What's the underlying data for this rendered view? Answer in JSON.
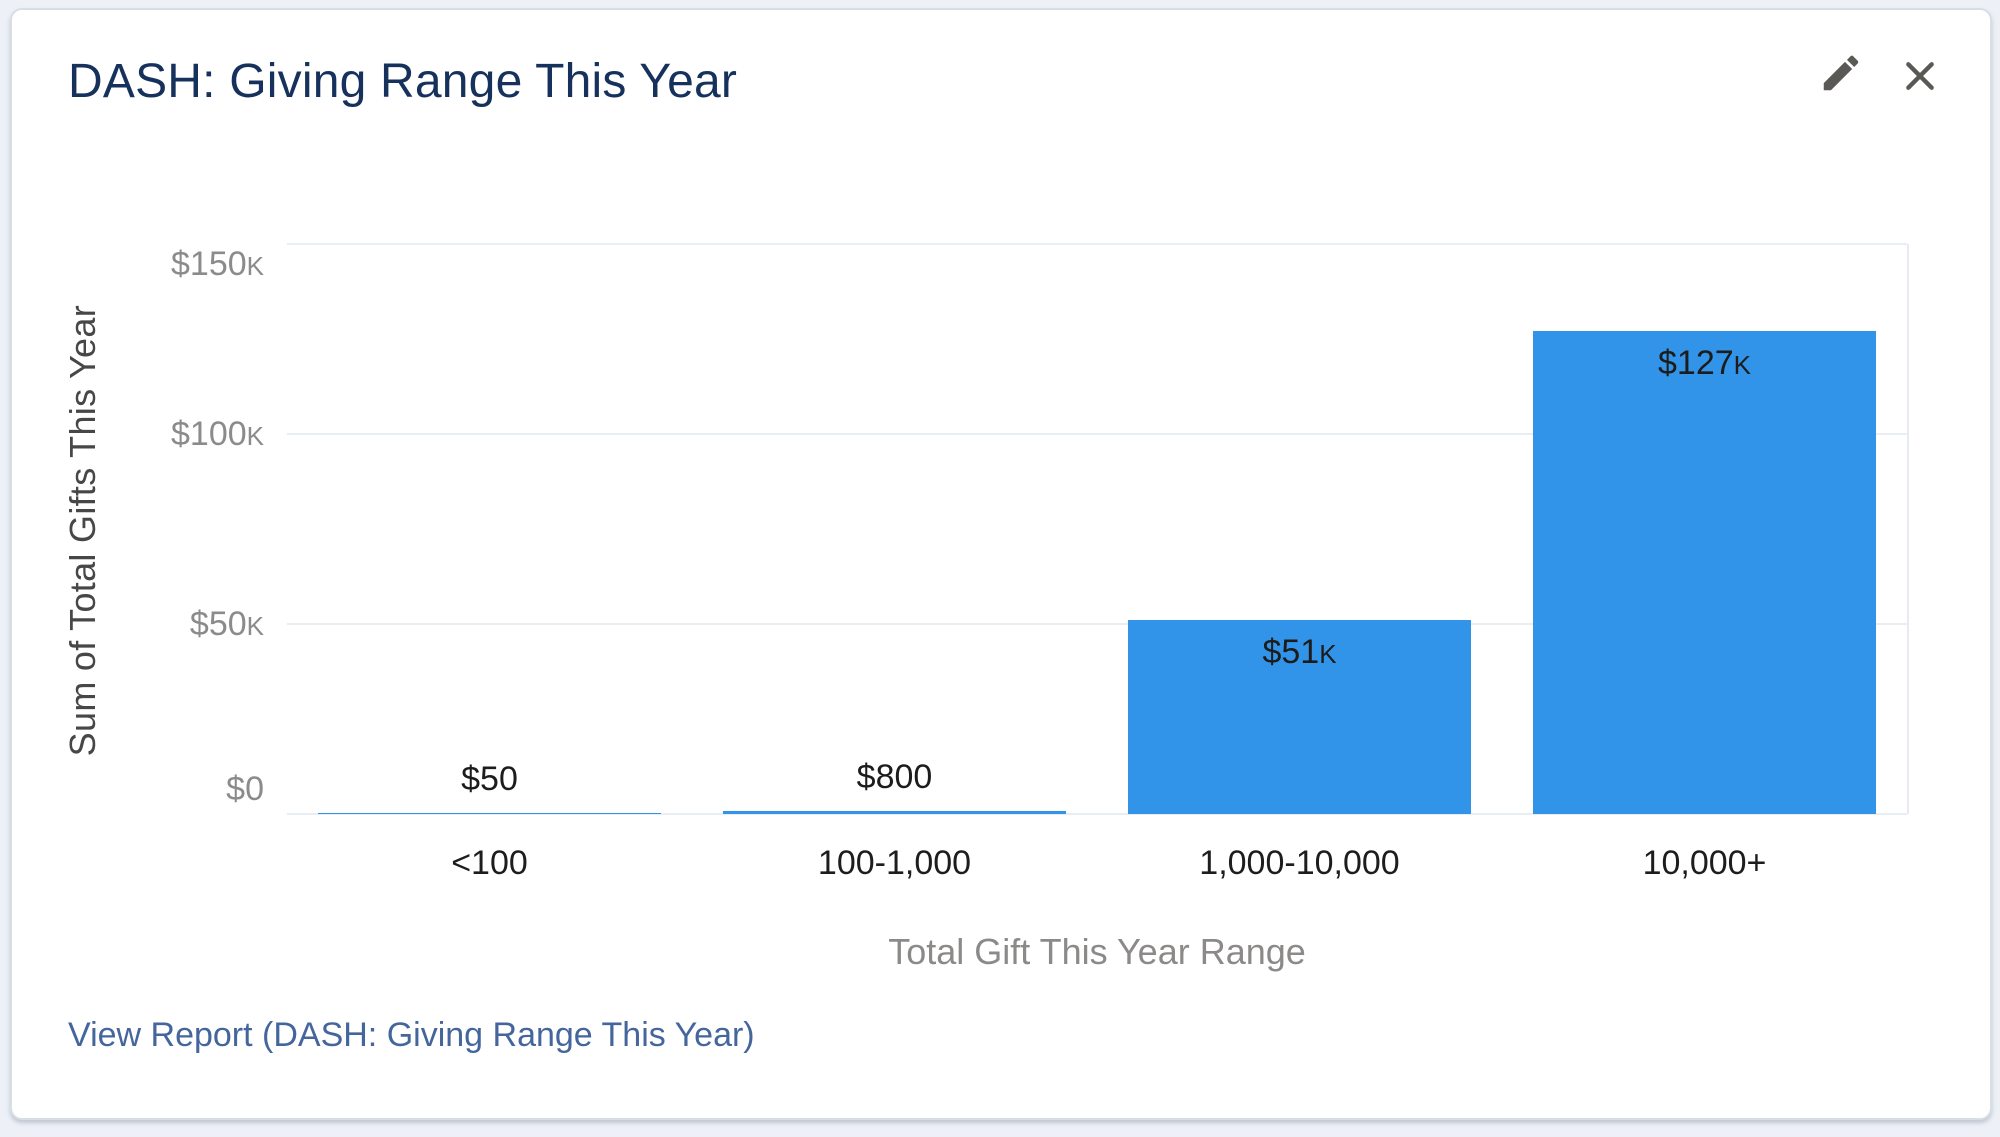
{
  "widget": {
    "title": "DASH: Giving Range This Year",
    "view_report_label": "View Report (DASH: Giving Range This Year)",
    "actions": [
      {
        "label": "Edit",
        "icon": "pencil-icon"
      },
      {
        "label": "Close",
        "icon": "close-icon"
      }
    ]
  },
  "chart_data": {
    "type": "bar",
    "title": "DASH: Giving Range This Year",
    "xlabel": "Total Gift This Year Range",
    "ylabel": "Sum of Total Gifts This Year",
    "categories": [
      "<100",
      "100-1,000",
      "1,000-10,000",
      "10,000+"
    ],
    "values": [
      50,
      800,
      51000,
      127000
    ],
    "value_labels": [
      {
        "main": "$50",
        "suffix": ""
      },
      {
        "main": "$800",
        "suffix": ""
      },
      {
        "main": "$51",
        "suffix": "K"
      },
      {
        "main": "$127",
        "suffix": "K"
      }
    ],
    "ylim": [
      0,
      150000
    ],
    "y_ticks": [
      {
        "value": 0,
        "main": "$0",
        "suffix": ""
      },
      {
        "value": 50000,
        "main": "$50",
        "suffix": "K"
      },
      {
        "value": 100000,
        "main": "$100",
        "suffix": "K"
      },
      {
        "value": 150000,
        "main": "$150",
        "suffix": "K"
      }
    ],
    "grid": true,
    "legend": "none",
    "bar_color": "#3294E8"
  },
  "colors": {
    "accent_bar": "#3294E8",
    "title_text": "#16325C",
    "link_text": "#44669C",
    "gridline": "#E9EEF5",
    "icon_gray": "#5B5955",
    "page_background": "#EDF1F7"
  }
}
